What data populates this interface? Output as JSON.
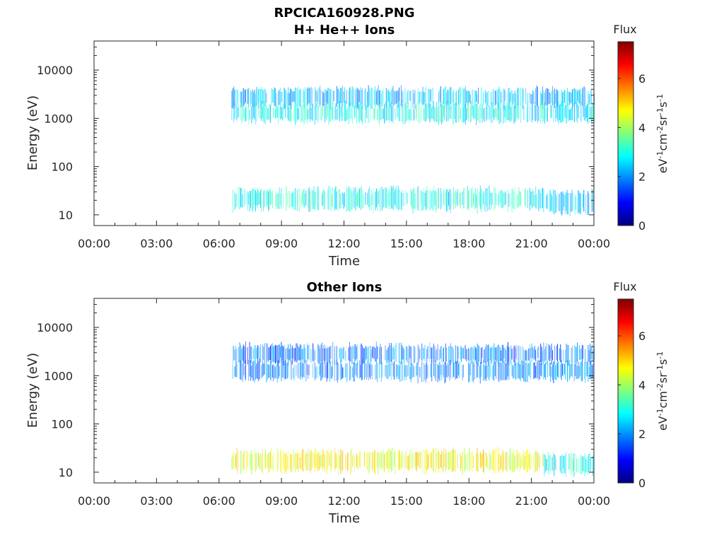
{
  "figure": {
    "title": "RPCICA160928.PNG"
  },
  "chart_data": [
    {
      "type": "heatmap",
      "title": "H+ He++ Ions",
      "xlabel": "Time",
      "ylabel": "Energy (eV)",
      "x_ticks": [
        "00:00",
        "03:00",
        "06:00",
        "09:00",
        "12:00",
        "15:00",
        "18:00",
        "21:00",
        "00:00"
      ],
      "xlim_hours": [
        0,
        24
      ],
      "y_scale": "log",
      "ylim": [
        6,
        40000
      ],
      "y_ticks": [
        10,
        100,
        1000,
        10000
      ],
      "y_tick_labels": [
        "10",
        "100",
        "1000",
        "10000"
      ],
      "colorbar": {
        "label_top": "Flux",
        "label_side": "eV-1cm-2sr-1s-1",
        "range": [
          0,
          7.5
        ],
        "ticks": [
          0,
          2,
          4,
          6
        ],
        "colormap": "jet"
      },
      "data_start_hour": 6.6,
      "bands": [
        {
          "energy_center": 2700,
          "from_hour": 6.6,
          "to_hour": 24,
          "flux": 2.3
        },
        {
          "energy_center": 1300,
          "from_hour": 6.6,
          "to_hour": 24,
          "flux": 2.8
        },
        {
          "energy_center": 21,
          "from_hour": 6.6,
          "to_hour": 21.6,
          "flux": 2.9
        },
        {
          "energy_center": 18,
          "from_hour": 21.6,
          "to_hour": 24,
          "flux": 2.4
        }
      ]
    },
    {
      "type": "heatmap",
      "title": "Other Ions",
      "xlabel": "Time",
      "ylabel": "Energy (eV)",
      "x_ticks": [
        "00:00",
        "03:00",
        "06:00",
        "09:00",
        "12:00",
        "15:00",
        "18:00",
        "21:00",
        "00:00"
      ],
      "xlim_hours": [
        0,
        24
      ],
      "y_scale": "log",
      "ylim": [
        6,
        40000
      ],
      "y_ticks": [
        10,
        100,
        1000,
        10000
      ],
      "y_tick_labels": [
        "10",
        "100",
        "1000",
        "10000"
      ],
      "colorbar": {
        "label_top": "Flux",
        "label_side": "eV-1cm-2sr-1s-1",
        "range": [
          0,
          7.5
        ],
        "ticks": [
          0,
          2,
          4,
          6
        ],
        "colormap": "jet"
      },
      "data_start_hour": 6.6,
      "bands": [
        {
          "energy_center": 2800,
          "from_hour": 6.6,
          "to_hour": 24,
          "flux": 1.8
        },
        {
          "energy_center": 1250,
          "from_hour": 6.6,
          "to_hour": 24,
          "flux": 1.9
        },
        {
          "energy_center": 17,
          "from_hour": 6.6,
          "to_hour": 21.6,
          "flux": 4.6
        },
        {
          "energy_center": 15,
          "from_hour": 21.6,
          "to_hour": 24,
          "flux": 3.0
        }
      ]
    }
  ]
}
